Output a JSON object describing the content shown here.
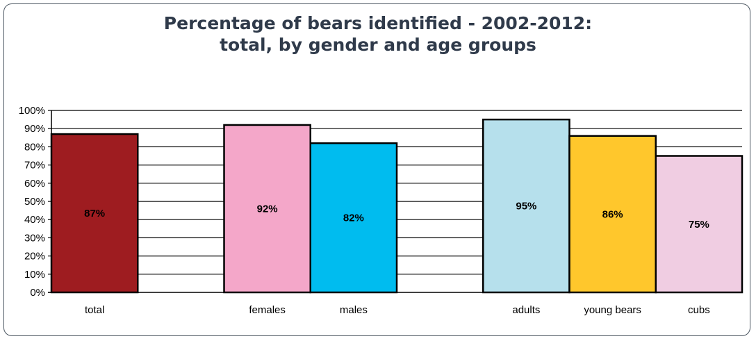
{
  "chart_data": {
    "type": "bar",
    "title_lines": [
      "Percentage of bears identified - 2002-2012:",
      "total, by gender and age groups"
    ],
    "ylim": [
      0,
      100
    ],
    "y_ticks": [
      "0%",
      "10%",
      "20%",
      "30%",
      "40%",
      "50%",
      "60%",
      "70%",
      "80%",
      "90%",
      "100%"
    ],
    "grid": true,
    "categories": [
      {
        "name": "total",
        "value": 87,
        "label": "87%",
        "color": "#9e1c20",
        "slot": 0
      },
      {
        "name": "females",
        "value": 92,
        "label": "92%",
        "color": "#f4a7c9",
        "slot": 2
      },
      {
        "name": "males",
        "value": 82,
        "label": "82%",
        "color": "#00bcef",
        "slot": 3
      },
      {
        "name": "adults",
        "value": 95,
        "label": "95%",
        "color": "#b6e0ec",
        "slot": 5
      },
      {
        "name": "young bears",
        "value": 86,
        "label": "86%",
        "color": "#ffc72c",
        "slot": 6
      },
      {
        "name": "cubs",
        "value": 75,
        "label": "75%",
        "color": "#f0cde2",
        "slot": 7
      }
    ]
  }
}
